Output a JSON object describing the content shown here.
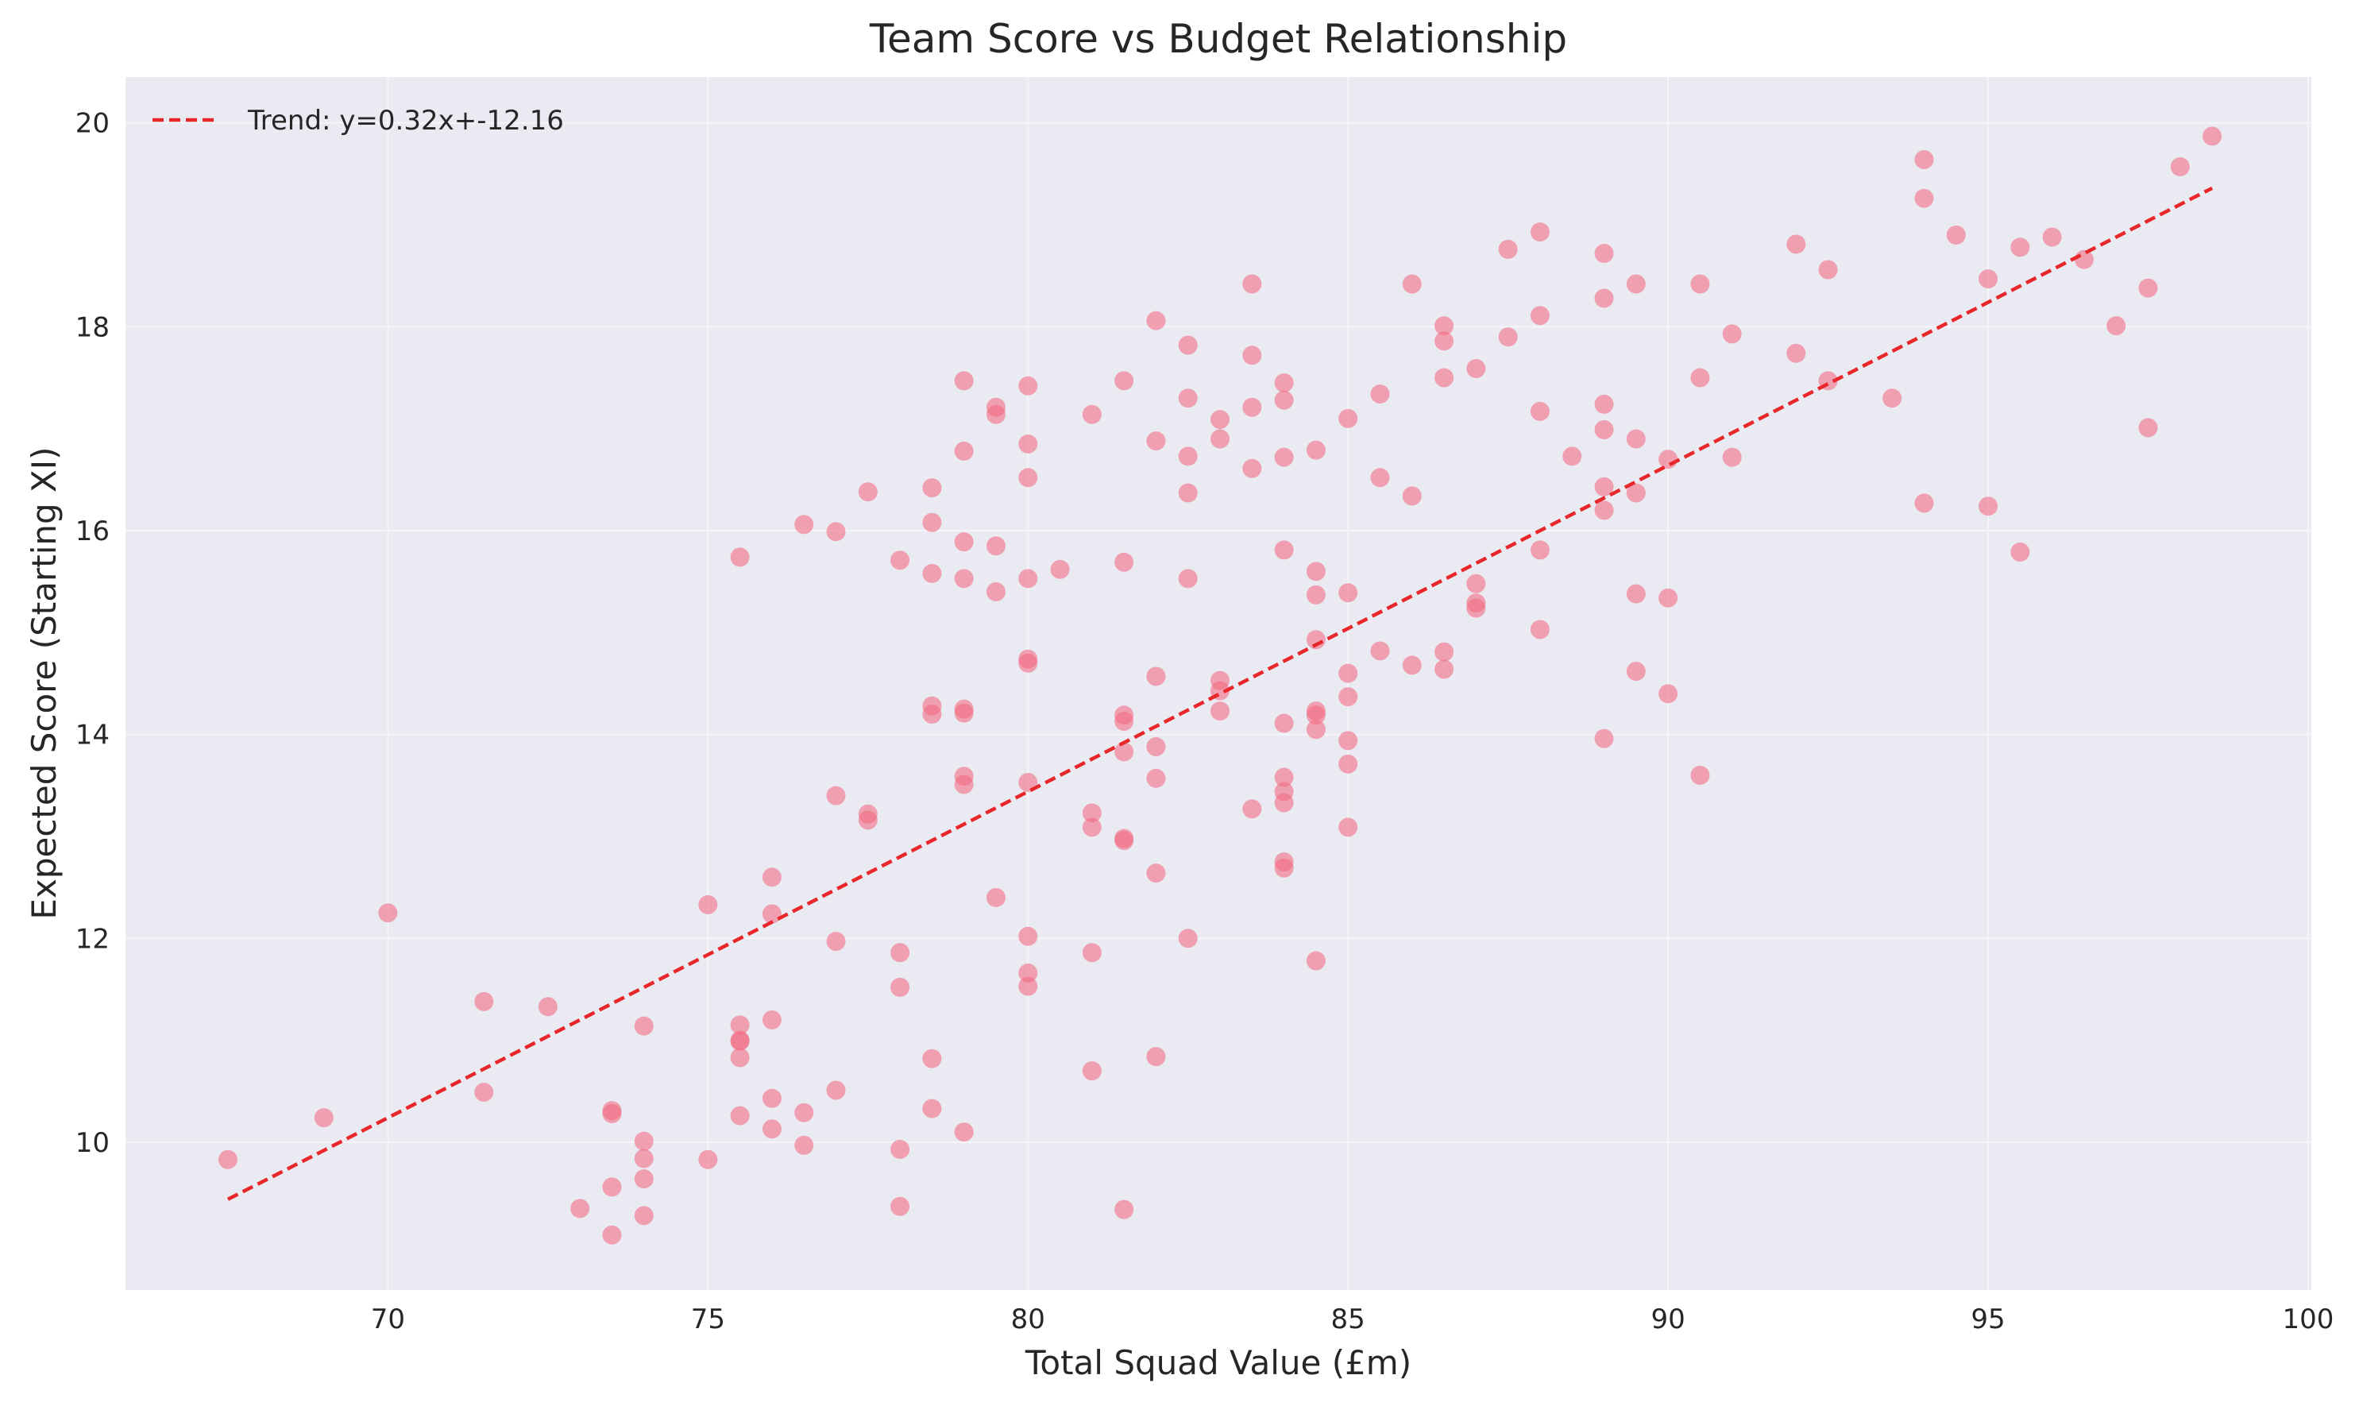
{
  "chart_data": {
    "type": "scatter",
    "title": "Team Score vs Budget Relationship",
    "xlabel": "Total Squad Value (£m)",
    "ylabel": "Expected Score (Starting XI)",
    "xlim": [
      65.9,
      100.05
    ],
    "ylim": [
      8.55,
      20.45
    ],
    "xticks": [
      70,
      75,
      80,
      85,
      90,
      95,
      100
    ],
    "yticks": [
      10,
      12,
      14,
      16,
      18,
      20
    ],
    "grid": true,
    "legend_position": "top-left",
    "colors": {
      "background": "#EAEAF2",
      "grid": "#F5F5F8",
      "point": "#F26C84",
      "trend": "#E8272A",
      "text": "#262626"
    },
    "trend": {
      "label": "Trend: y=0.32x+-12.16",
      "slope": 0.32,
      "intercept": -12.16,
      "x_range": [
        67.5,
        98.5
      ]
    },
    "points": [
      [
        67.5,
        9.83
      ],
      [
        69.0,
        10.24
      ],
      [
        70.0,
        12.25
      ],
      [
        71.5,
        11.38
      ],
      [
        71.5,
        10.49
      ],
      [
        72.5,
        11.33
      ],
      [
        73.0,
        9.35
      ],
      [
        73.5,
        10.31
      ],
      [
        73.5,
        10.28
      ],
      [
        73.5,
        9.56
      ],
      [
        73.5,
        9.09
      ],
      [
        74.0,
        11.14
      ],
      [
        74.0,
        10.01
      ],
      [
        74.0,
        9.84
      ],
      [
        74.0,
        9.64
      ],
      [
        74.0,
        9.28
      ],
      [
        75.0,
        12.33
      ],
      [
        75.0,
        9.83
      ],
      [
        75.5,
        15.74
      ],
      [
        75.5,
        11.15
      ],
      [
        75.5,
        11.0
      ],
      [
        75.5,
        10.99
      ],
      [
        75.5,
        10.83
      ],
      [
        75.5,
        10.26
      ],
      [
        76.0,
        12.6
      ],
      [
        76.0,
        12.24
      ],
      [
        76.0,
        11.2
      ],
      [
        76.0,
        10.43
      ],
      [
        76.0,
        10.13
      ],
      [
        76.5,
        16.06
      ],
      [
        76.5,
        10.29
      ],
      [
        76.5,
        9.97
      ],
      [
        77.0,
        15.99
      ],
      [
        77.0,
        13.4
      ],
      [
        77.0,
        11.97
      ],
      [
        77.0,
        10.51
      ],
      [
        77.5,
        16.38
      ],
      [
        77.5,
        13.22
      ],
      [
        77.5,
        13.16
      ],
      [
        78.0,
        15.71
      ],
      [
        78.0,
        11.86
      ],
      [
        78.0,
        11.52
      ],
      [
        78.0,
        9.93
      ],
      [
        78.0,
        9.37
      ],
      [
        78.5,
        16.42
      ],
      [
        78.5,
        16.08
      ],
      [
        78.5,
        15.58
      ],
      [
        78.5,
        14.28
      ],
      [
        78.5,
        14.2
      ],
      [
        78.5,
        10.82
      ],
      [
        78.5,
        10.33
      ],
      [
        79.0,
        17.47
      ],
      [
        79.0,
        16.78
      ],
      [
        79.0,
        15.89
      ],
      [
        79.0,
        15.53
      ],
      [
        79.0,
        14.25
      ],
      [
        79.0,
        14.21
      ],
      [
        79.0,
        13.59
      ],
      [
        79.0,
        13.51
      ],
      [
        79.0,
        10.1
      ],
      [
        79.5,
        17.21
      ],
      [
        79.5,
        17.14
      ],
      [
        79.5,
        15.85
      ],
      [
        79.5,
        15.4
      ],
      [
        79.5,
        12.4
      ],
      [
        80.0,
        17.42
      ],
      [
        80.0,
        16.85
      ],
      [
        80.0,
        16.52
      ],
      [
        80.0,
        15.53
      ],
      [
        80.0,
        14.74
      ],
      [
        80.0,
        14.7
      ],
      [
        80.0,
        13.53
      ],
      [
        80.0,
        12.02
      ],
      [
        80.0,
        11.66
      ],
      [
        80.0,
        11.53
      ],
      [
        80.5,
        15.62
      ],
      [
        81.0,
        17.14
      ],
      [
        81.0,
        13.23
      ],
      [
        81.0,
        13.09
      ],
      [
        81.0,
        11.86
      ],
      [
        81.0,
        10.7
      ],
      [
        81.5,
        17.47
      ],
      [
        81.5,
        15.69
      ],
      [
        81.5,
        14.19
      ],
      [
        81.5,
        14.13
      ],
      [
        81.5,
        13.83
      ],
      [
        81.5,
        12.98
      ],
      [
        81.5,
        12.96
      ],
      [
        81.5,
        9.34
      ],
      [
        82.0,
        18.06
      ],
      [
        82.0,
        16.88
      ],
      [
        82.0,
        14.57
      ],
      [
        82.0,
        13.88
      ],
      [
        82.0,
        13.57
      ],
      [
        82.0,
        12.64
      ],
      [
        82.0,
        10.84
      ],
      [
        82.5,
        17.82
      ],
      [
        82.5,
        17.3
      ],
      [
        82.5,
        16.73
      ],
      [
        82.5,
        16.37
      ],
      [
        82.5,
        15.53
      ],
      [
        82.5,
        12.0
      ],
      [
        83.0,
        17.09
      ],
      [
        83.0,
        16.9
      ],
      [
        83.0,
        14.53
      ],
      [
        83.0,
        14.43
      ],
      [
        83.0,
        14.23
      ],
      [
        83.5,
        18.42
      ],
      [
        83.5,
        17.72
      ],
      [
        83.5,
        17.21
      ],
      [
        83.5,
        16.61
      ],
      [
        83.5,
        13.27
      ],
      [
        84.0,
        17.45
      ],
      [
        84.0,
        17.28
      ],
      [
        84.0,
        16.72
      ],
      [
        84.0,
        15.81
      ],
      [
        84.0,
        14.11
      ],
      [
        84.0,
        13.58
      ],
      [
        84.0,
        13.44
      ],
      [
        84.0,
        13.33
      ],
      [
        84.0,
        12.75
      ],
      [
        84.0,
        12.69
      ],
      [
        84.5,
        16.79
      ],
      [
        84.5,
        15.6
      ],
      [
        84.5,
        15.37
      ],
      [
        84.5,
        14.93
      ],
      [
        84.5,
        14.23
      ],
      [
        84.5,
        14.19
      ],
      [
        84.5,
        14.05
      ],
      [
        84.5,
        11.78
      ],
      [
        85.0,
        17.1
      ],
      [
        85.0,
        15.39
      ],
      [
        85.0,
        14.6
      ],
      [
        85.0,
        14.37
      ],
      [
        85.0,
        13.94
      ],
      [
        85.0,
        13.71
      ],
      [
        85.0,
        13.09
      ],
      [
        85.5,
        17.34
      ],
      [
        85.5,
        16.52
      ],
      [
        85.5,
        14.82
      ],
      [
        86.0,
        18.42
      ],
      [
        86.0,
        16.34
      ],
      [
        86.0,
        14.68
      ],
      [
        86.5,
        18.01
      ],
      [
        86.5,
        17.86
      ],
      [
        86.5,
        17.5
      ],
      [
        86.5,
        14.81
      ],
      [
        86.5,
        14.64
      ],
      [
        87.0,
        17.59
      ],
      [
        87.0,
        15.48
      ],
      [
        87.0,
        15.29
      ],
      [
        87.0,
        15.24
      ],
      [
        87.5,
        18.76
      ],
      [
        87.5,
        17.9
      ],
      [
        88.0,
        18.93
      ],
      [
        88.0,
        18.11
      ],
      [
        88.0,
        17.17
      ],
      [
        88.0,
        15.81
      ],
      [
        88.0,
        15.03
      ],
      [
        88.5,
        16.73
      ],
      [
        89.0,
        18.72
      ],
      [
        89.0,
        18.28
      ],
      [
        89.0,
        17.24
      ],
      [
        89.0,
        16.99
      ],
      [
        89.0,
        16.43
      ],
      [
        89.0,
        16.2
      ],
      [
        89.0,
        13.96
      ],
      [
        89.5,
        18.42
      ],
      [
        89.5,
        16.9
      ],
      [
        89.5,
        16.37
      ],
      [
        89.5,
        15.38
      ],
      [
        89.5,
        14.62
      ],
      [
        90.0,
        16.7
      ],
      [
        90.0,
        15.34
      ],
      [
        90.0,
        14.4
      ],
      [
        90.5,
        18.42
      ],
      [
        90.5,
        17.5
      ],
      [
        90.5,
        13.6
      ],
      [
        91.0,
        17.93
      ],
      [
        91.0,
        16.72
      ],
      [
        92.0,
        18.81
      ],
      [
        92.0,
        17.74
      ],
      [
        92.5,
        18.56
      ],
      [
        92.5,
        17.47
      ],
      [
        93.5,
        17.3
      ],
      [
        94.0,
        19.64
      ],
      [
        94.0,
        19.26
      ],
      [
        94.0,
        16.27
      ],
      [
        94.5,
        18.9
      ],
      [
        95.0,
        18.47
      ],
      [
        95.0,
        16.24
      ],
      [
        95.5,
        18.78
      ],
      [
        95.5,
        15.79
      ],
      [
        96.0,
        18.88
      ],
      [
        96.5,
        18.66
      ],
      [
        97.0,
        18.01
      ],
      [
        97.5,
        18.38
      ],
      [
        97.5,
        17.01
      ],
      [
        98.0,
        19.57
      ],
      [
        98.5,
        19.87
      ]
    ]
  }
}
